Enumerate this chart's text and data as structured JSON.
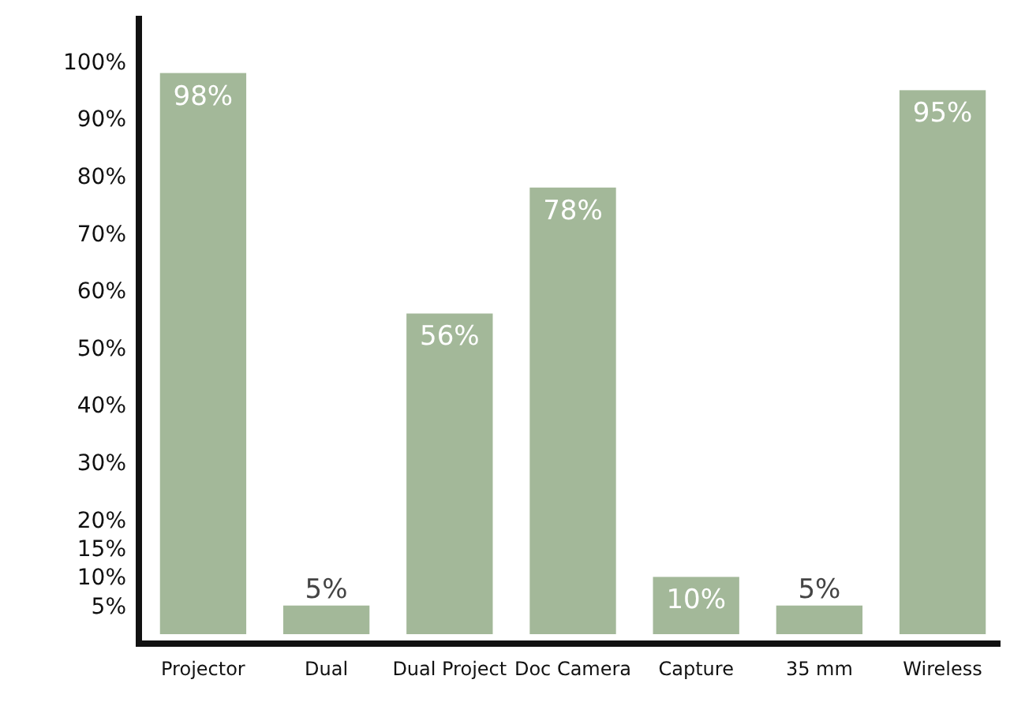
{
  "chart_data": {
    "type": "bar",
    "categories": [
      "Projector",
      "Dual",
      "Dual Project",
      "Doc Camera",
      "Capture",
      "35 mm",
      "Wireless"
    ],
    "values": [
      98,
      5,
      56,
      78,
      10,
      5,
      95
    ],
    "value_labels": [
      "98%",
      "5%",
      "56%",
      "78%",
      "10%",
      "5%",
      "95%"
    ],
    "color": "#a3b899",
    "ylim": [
      0,
      108
    ],
    "yticks": [
      {
        "value": 5,
        "label": "5%"
      },
      {
        "value": 10,
        "label": "10%"
      },
      {
        "value": 15,
        "label": "15%"
      },
      {
        "value": 20,
        "label": "20%"
      },
      {
        "value": 30,
        "label": "30%"
      },
      {
        "value": 40,
        "label": "40%"
      },
      {
        "value": 50,
        "label": "50%"
      },
      {
        "value": 60,
        "label": "60%"
      },
      {
        "value": 70,
        "label": "70%"
      },
      {
        "value": 80,
        "label": "80%"
      },
      {
        "value": 90,
        "label": "90%"
      },
      {
        "value": 100,
        "label": "100%"
      }
    ]
  }
}
